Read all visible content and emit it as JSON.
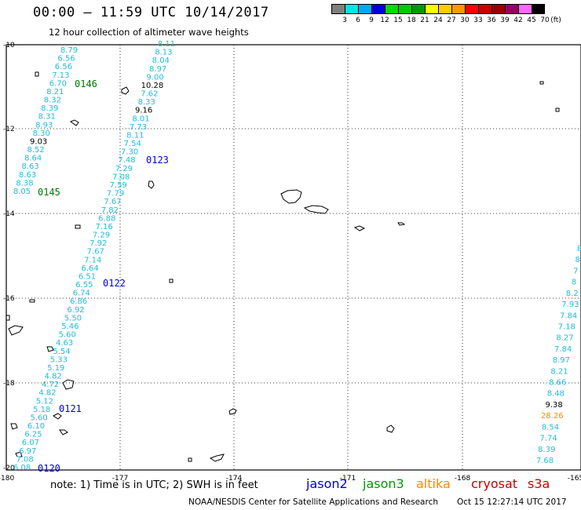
{
  "header": {
    "title": "00:00 – 11:59 UTC 10/14/2017",
    "subtitle": "12 hour collection of altimeter wave heights"
  },
  "colorbar": {
    "colors": [
      "#808080",
      "#00e5e5",
      "#00aaff",
      "#0000dd",
      "#00dd00",
      "#00cc00",
      "#009900",
      "#ffff00",
      "#ffcc00",
      "#ff9900",
      "#ff0000",
      "#cc0000",
      "#990000",
      "#990066",
      "#ff66ff",
      "#000000"
    ],
    "labels": [
      "3",
      "6",
      "9",
      "12",
      "15",
      "18",
      "21",
      "24",
      "27",
      "30",
      "33",
      "36",
      "39",
      "42",
      "45",
      "70"
    ],
    "unit": "(ft)"
  },
  "axes": {
    "x_labels": [
      "-180",
      "-177",
      "-174",
      "-171",
      "-168",
      "-165"
    ],
    "y_labels": [
      "-10",
      "-12",
      "-14",
      "-16",
      "-18",
      "-20"
    ]
  },
  "note": "note:  1) Time is in UTC;  2) SWH is in feet",
  "satellites": [
    {
      "name": "jason2",
      "color": "#0000cc"
    },
    {
      "name": "jason3",
      "color": "#009900"
    },
    {
      "name": "altika",
      "color": "#ff8800"
    },
    {
      "name": "cryosat",
      "color": "#cc0000"
    },
    {
      "name": "s3a",
      "color": "#cc0000"
    }
  ],
  "footer": "NOAA/NESDIS Center for Satellite Applications and Research",
  "footer_time": "Oct 15 12:27:14 UTC 2017",
  "track_labels": [
    {
      "text": "0146",
      "color": "#007700"
    },
    {
      "text": "0145",
      "color": "#007700"
    },
    {
      "text": "0123",
      "color": "#0000cc"
    },
    {
      "text": "0122",
      "color": "#0000cc"
    },
    {
      "text": "0121",
      "color": "#0000cc"
    },
    {
      "text": "0120",
      "color": "#0000cc"
    }
  ],
  "tracks": {
    "track_a": [
      "8.79",
      "6.56",
      "6.56",
      "7.13",
      "6.70",
      "8.21",
      "8.32",
      "8.39",
      "8.31",
      "8.93",
      "8.30",
      "9.03",
      "8.52",
      "8.64",
      "8.63",
      "8.63",
      "8.38",
      "8.05"
    ],
    "track_b": [
      "8.11",
      "8.13",
      "8.04",
      "8.97",
      "9.00",
      "10.28",
      "7.62",
      "8.33",
      "9.16",
      "8.01",
      "7.73",
      "8.11",
      "7.54",
      "7.30",
      "7.48",
      "7.29",
      "7.08",
      "7.59",
      "7.79",
      "7.67",
      "7.82",
      "6.88",
      "7.16",
      "7.29",
      "7.92",
      "7.67",
      "7.14",
      "6.64",
      "6.51",
      "6.55",
      "6.74",
      "6.86",
      "6.92",
      "5.50",
      "5.46",
      "5.60",
      "4.63",
      "5.54",
      "5.33",
      "5.19",
      "4.82",
      "4.72",
      "4.82",
      "5.12",
      "5.18",
      "5.60",
      "6.10",
      "6.25",
      "6.07",
      "6.97",
      "7.08",
      "6.08"
    ],
    "track_c": [
      "8",
      "8",
      "7",
      "8",
      "8.2",
      "7.93",
      "7.84",
      "7.18",
      "8.27",
      "7.84",
      "8.97",
      "8.21",
      "8.66",
      "8.48",
      "9.38",
      "28.26",
      "8.54",
      "7.74",
      "8.39",
      "7.68"
    ]
  }
}
